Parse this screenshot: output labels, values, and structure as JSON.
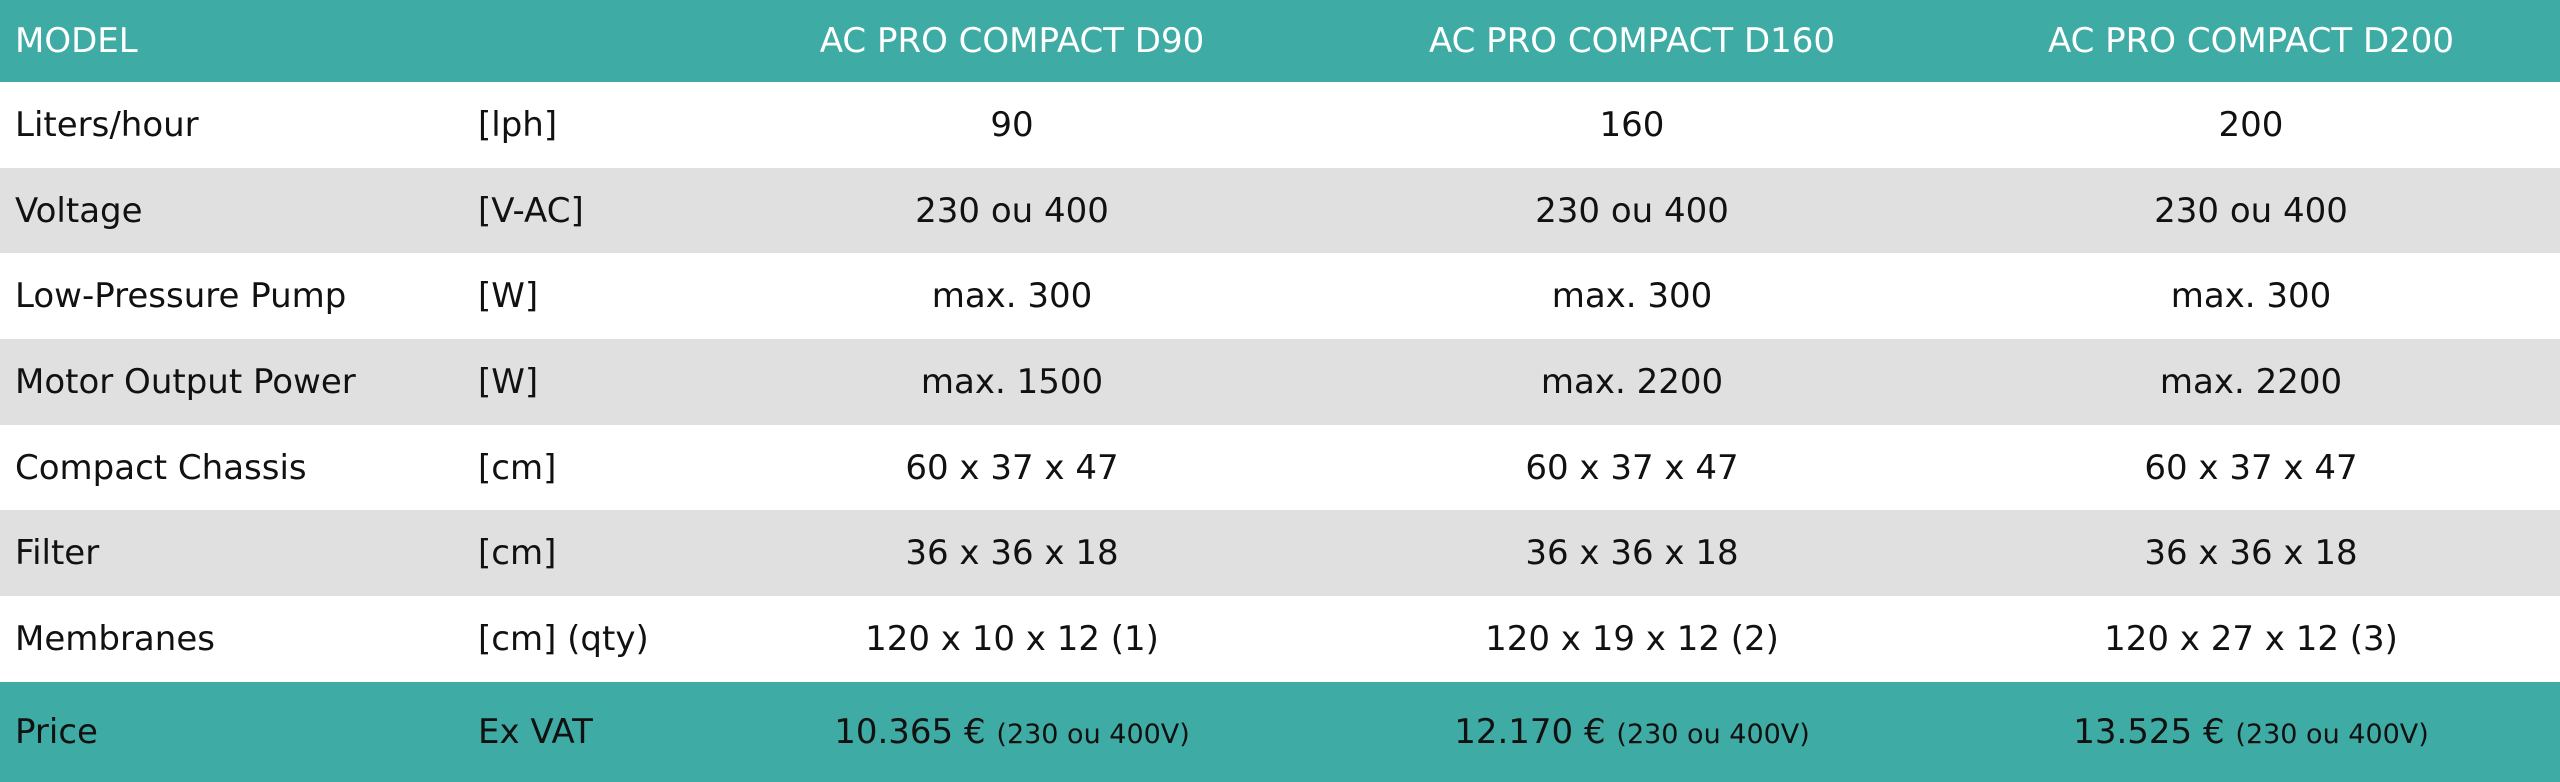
{
  "header": {
    "model": "MODEL",
    "columns": [
      "AC PRO COMPACT D90",
      "AC PRO COMPACT D160",
      "AC PRO COMPACT D200"
    ]
  },
  "rows": [
    [
      "Liters/hour",
      "[lph]",
      "90",
      "160",
      "200"
    ],
    [
      "Voltage",
      "[V-AC]",
      "230 ou 400",
      "230 ou 400",
      "230 ou 400"
    ],
    [
      "Low-Pressure Pump",
      "[W]",
      "max. 300",
      "max. 300",
      "max. 300"
    ],
    [
      "Motor Output Power",
      "[W]",
      "max. 1500",
      "max. 2200",
      "max. 2200"
    ],
    [
      "Compact Chassis",
      "[cm]",
      "60 x 37 x 47",
      "60 x 37 x 47",
      "60 x 37 x 47"
    ],
    [
      "Filter",
      "[cm]",
      "36 x 36 x 18",
      "36 x 36 x 18",
      "36 x 36 x 18"
    ],
    [
      "Membranes",
      "[cm] (qty)",
      "120 x 10 x 12 (1)",
      "120 x 19 x 12 (2)",
      "120 x 27 x 12 (3)"
    ]
  ],
  "price": {
    "label": "Price",
    "unit": "Ex VAT",
    "cells": [
      {
        "amount": "10.365 €",
        "note": "(230 ou 400V)"
      },
      {
        "amount": "12.170 €",
        "note": "(230 ou 400V)"
      },
      {
        "amount": "13.525 €",
        "note": "(230 ou 400V)"
      }
    ]
  }
}
